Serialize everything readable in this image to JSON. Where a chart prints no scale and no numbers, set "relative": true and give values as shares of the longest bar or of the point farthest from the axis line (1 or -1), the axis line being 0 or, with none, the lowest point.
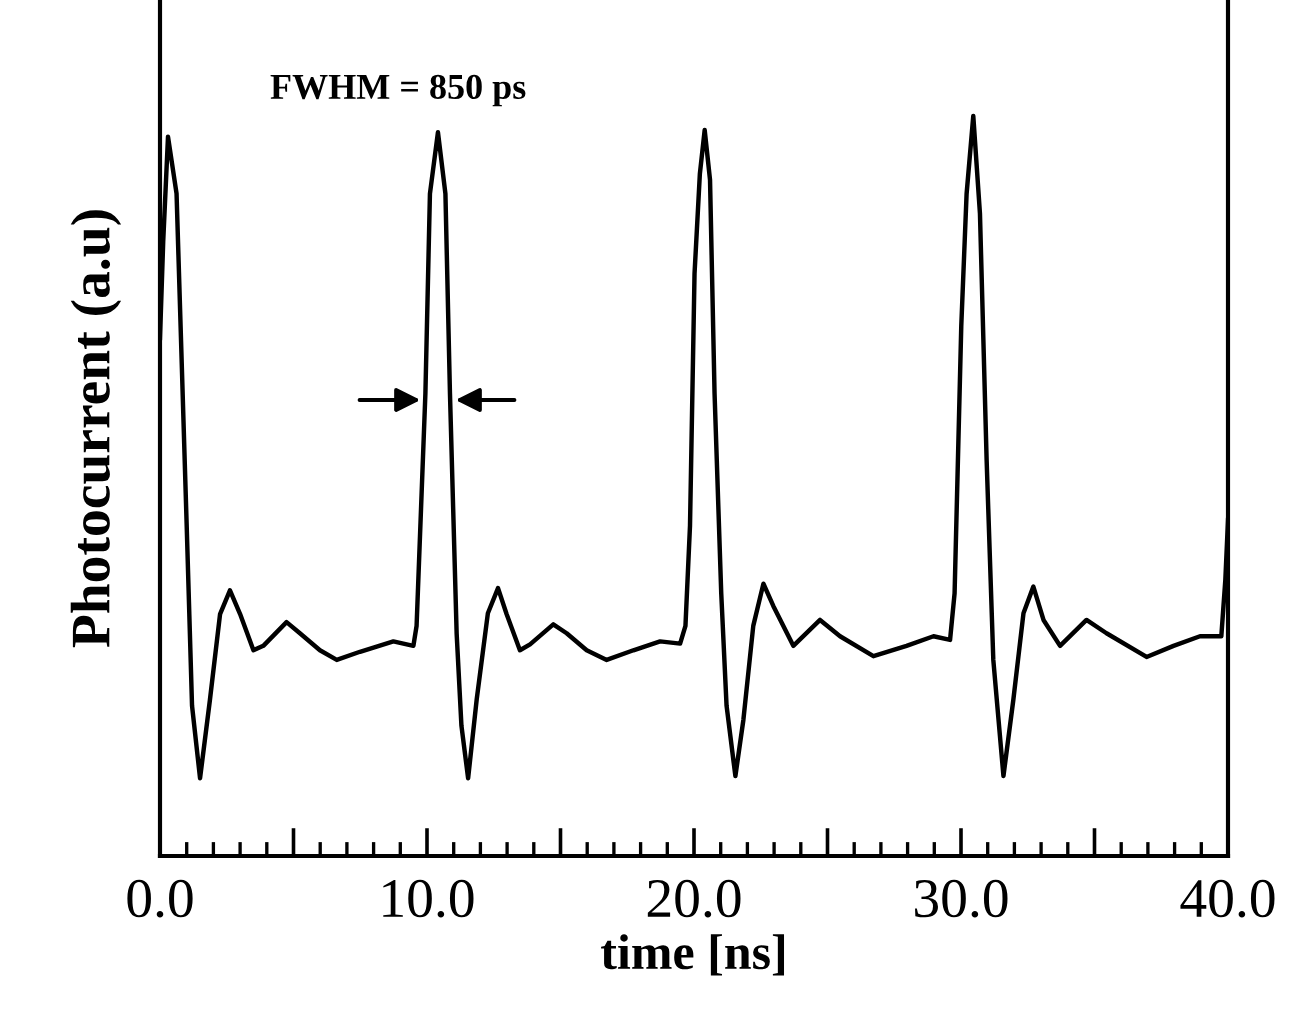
{
  "chart_data": {
    "type": "line",
    "relative": true,
    "xlabel": "time [ns]",
    "ylabel": "Photocurrent (a.u)",
    "annotations": [
      "FWHM = 850 ps"
    ],
    "xlim": [
      0,
      40
    ],
    "xticks": [
      {
        "value": 0,
        "label": "0.0"
      },
      {
        "value": 5,
        "label": null
      },
      {
        "value": 10,
        "label": "10.0"
      },
      {
        "value": 15,
        "label": null
      },
      {
        "value": 20,
        "label": "20.0"
      },
      {
        "value": 25,
        "label": null
      },
      {
        "value": 30,
        "label": "30.0"
      },
      {
        "value": 35,
        "label": null
      },
      {
        "value": 40,
        "label": "40.0"
      }
    ],
    "grid": false,
    "legend": false,
    "marker": "none",
    "line_style": "solid",
    "series": [
      {
        "color": "#000000",
        "x": [
          0.0,
          0.12,
          0.3,
          0.62,
          1.0,
          1.2,
          1.5,
          1.87,
          2.25,
          2.62,
          3.0,
          3.5,
          3.87,
          4.74,
          5.24,
          5.99,
          6.62,
          7.49,
          8.74,
          9.49,
          9.61,
          9.94,
          10.11,
          10.41,
          10.69,
          10.86,
          11.11,
          11.29,
          11.54,
          11.86,
          12.28,
          12.66,
          12.98,
          13.48,
          13.86,
          14.73,
          15.23,
          15.98,
          16.73,
          17.73,
          18.73,
          19.48,
          19.68,
          19.85,
          20.02,
          20.22,
          20.4,
          20.6,
          20.77,
          21.02,
          21.22,
          21.55,
          21.85,
          22.22,
          22.6,
          22.97,
          23.72,
          24.72,
          25.47,
          26.72,
          27.96,
          28.97,
          29.59,
          29.76,
          30.01,
          30.21,
          30.46,
          30.71,
          30.96,
          31.21,
          31.59,
          31.96,
          32.34,
          32.71,
          33.09,
          33.71,
          34.7,
          35.45,
          36.95,
          37.96,
          38.95,
          39.75,
          39.9,
          40.0
        ],
        "values": [
          0.7,
          0.83,
          0.972,
          0.895,
          0.446,
          0.203,
          0.105,
          0.211,
          0.327,
          0.359,
          0.327,
          0.278,
          0.284,
          0.316,
          0.301,
          0.278,
          0.265,
          0.276,
          0.29,
          0.284,
          0.311,
          0.625,
          0.895,
          0.978,
          0.895,
          0.625,
          0.301,
          0.176,
          0.105,
          0.211,
          0.328,
          0.362,
          0.327,
          0.278,
          0.286,
          0.313,
          0.301,
          0.278,
          0.265,
          0.278,
          0.29,
          0.287,
          0.311,
          0.446,
          0.787,
          0.922,
          0.981,
          0.914,
          0.625,
          0.355,
          0.203,
          0.108,
          0.184,
          0.311,
          0.368,
          0.338,
          0.284,
          0.319,
          0.297,
          0.27,
          0.284,
          0.297,
          0.292,
          0.355,
          0.716,
          0.895,
          1.0,
          0.868,
          0.535,
          0.265,
          0.108,
          0.211,
          0.328,
          0.364,
          0.319,
          0.284,
          0.319,
          0.301,
          0.269,
          0.284,
          0.297,
          0.297,
          0.373,
          0.454
        ]
      }
    ]
  }
}
